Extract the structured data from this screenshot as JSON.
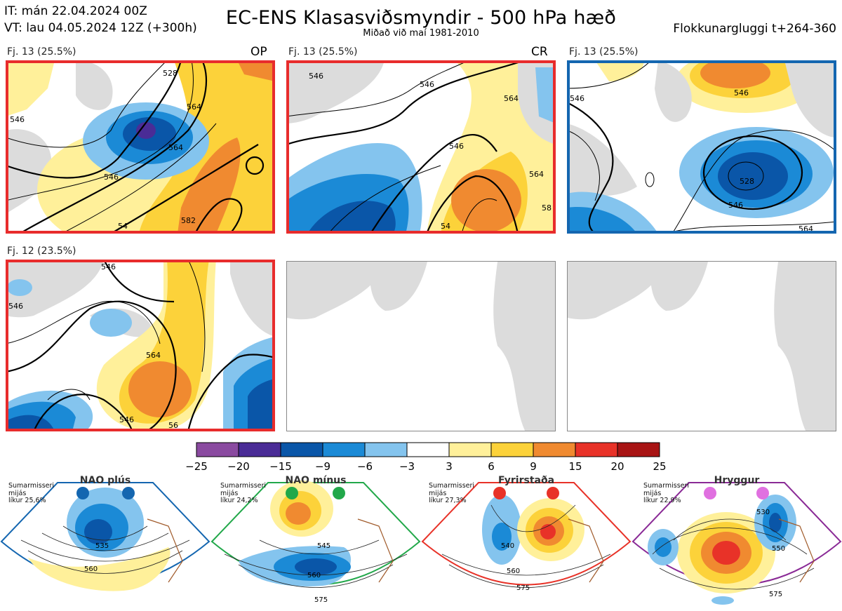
{
  "header": {
    "it_line": "IT: mán 22.04.2024 00Z",
    "vt_line": "VT: lau 04.05.2024 12Z  (+300h)",
    "title": "EC-ENS Klasasviðsmyndir - 500 hPa hæð",
    "subtitle": "Miðað við maí 1981-2010",
    "window": "Flokkunargluggi t+264-360"
  },
  "panels": [
    {
      "label": "Fj. 13 (25.5%)",
      "tag": "OP",
      "border": "#e82c2c",
      "contours": [
        "528",
        "546",
        "564",
        "564",
        "546",
        "582",
        "54"
      ]
    },
    {
      "label": "Fj. 13 (25.5%)",
      "tag": "CR",
      "border": "#e82c2c",
      "contours": [
        "546",
        "546",
        "546",
        "564",
        "564",
        "54",
        "58"
      ]
    },
    {
      "label": "Fj. 13 (25.5%)",
      "tag": "",
      "border": "#1466b0",
      "contours": [
        "546",
        "546",
        "528",
        "546",
        "564"
      ]
    },
    {
      "label": "Fj. 12 (23.5%)",
      "tag": "",
      "border": "#e82c2c",
      "contours": [
        "546",
        "546",
        "564",
        "546",
        "56"
      ]
    },
    {
      "label": "",
      "tag": "",
      "border": "",
      "contours": []
    },
    {
      "label": "",
      "tag": "",
      "border": "",
      "contours": []
    }
  ],
  "colors": {
    "red_frame": "#e82c2c",
    "blue_frame": "#1466b0",
    "land": "#dcdcdc",
    "coast": "#7a5a48"
  },
  "chart_data": {
    "type": "heatmap",
    "title": "EC-ENS Klasasviðsmyndir - 500 hPa hæð",
    "colorbar": {
      "ticks": [
        "−25",
        "−20",
        "−15",
        "−9",
        "−6",
        "−3",
        "3",
        "6",
        "9",
        "15",
        "20",
        "25"
      ],
      "bins": [
        {
          "from": -25,
          "to": -20,
          "color": "#8a4aa0"
        },
        {
          "from": -20,
          "to": -15,
          "color": "#4a2c96"
        },
        {
          "from": -15,
          "to": -9,
          "color": "#0a56a8"
        },
        {
          "from": -9,
          "to": -6,
          "color": "#1b8ad6"
        },
        {
          "from": -6,
          "to": -3,
          "color": "#84c4ee"
        },
        {
          "from": -3,
          "to": 3,
          "color": "#ffffff"
        },
        {
          "from": 3,
          "to": 6,
          "color": "#fff09a"
        },
        {
          "from": 6,
          "to": 9,
          "color": "#fcd23a"
        },
        {
          "from": 9,
          "to": 15,
          "color": "#f08a30"
        },
        {
          "from": 15,
          "to": 20,
          "color": "#e83228"
        },
        {
          "from": 20,
          "to": 25,
          "color": "#a81414"
        }
      ]
    },
    "clusters": [
      {
        "label": "Fj. 13 (25.5%)",
        "tag": "OP",
        "members": 13,
        "percent": 25.5,
        "frame": "red"
      },
      {
        "label": "Fj. 13 (25.5%)",
        "tag": "CR",
        "members": 13,
        "percent": 25.5,
        "frame": "red"
      },
      {
        "label": "Fj. 13 (25.5%)",
        "tag": "",
        "members": 13,
        "percent": 25.5,
        "frame": "blue"
      },
      {
        "label": "Fj. 12 (23.5%)",
        "tag": "",
        "members": 12,
        "percent": 23.5,
        "frame": "red"
      }
    ],
    "regimes": [
      {
        "name": "NAO plús",
        "season": "Sumarmisseri",
        "note": "mijás",
        "likelihood": "líkur 25,6%",
        "dot_color": "#1466b0",
        "frame": "#1466b0",
        "contours": [
          "535",
          "560"
        ]
      },
      {
        "name": "NAO mínus",
        "season": "Sumarmisseri",
        "note": "mijás",
        "likelihood": "líkur 24,2%",
        "dot_color": "#22a84a",
        "frame": "#22a84a",
        "contours": [
          "545",
          "560",
          "575"
        ]
      },
      {
        "name": "Fyrirstaða",
        "season": "Sumarmisseri",
        "note": "mijás",
        "likelihood": "líkur 27,3%",
        "dot_color": "#e83228",
        "frame": "#e83228",
        "contours": [
          "540",
          "560",
          "575"
        ]
      },
      {
        "name": "Hryggur",
        "season": "Sumarmisseri",
        "note": "mijás",
        "likelihood": "líkur 22,9%",
        "dot_color": "#e070e0",
        "frame": "#8a2a96",
        "contours": [
          "530",
          "550",
          "575"
        ]
      }
    ]
  }
}
